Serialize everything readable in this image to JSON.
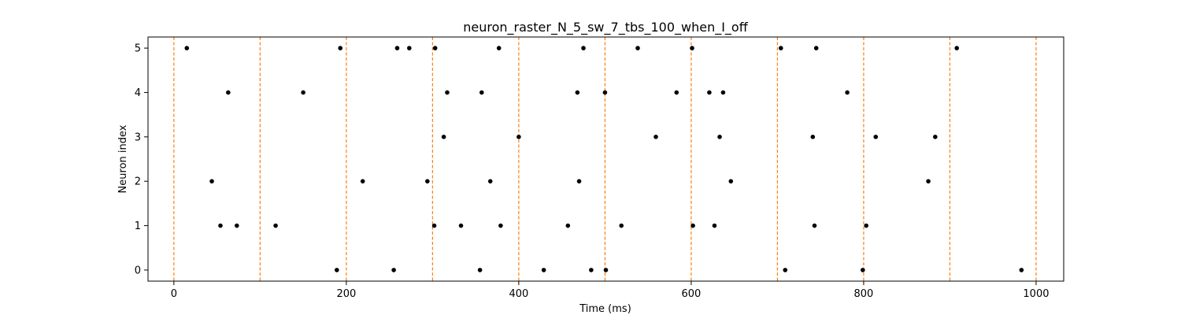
{
  "chart_data": {
    "type": "scatter",
    "title": "neuron_raster_N_5_sw_7_tbs_100_when_I_off",
    "xlabel": "Time (ms)",
    "ylabel": "Neuron index",
    "xlim": [
      -30,
      1032
    ],
    "ylim": [
      -0.25,
      5.25
    ],
    "xticks": [
      0,
      200,
      400,
      600,
      800,
      1000
    ],
    "yticks": [
      0,
      1,
      2,
      3,
      4,
      5
    ],
    "grid": false,
    "legend": "none",
    "marker_color": "#000000",
    "vline_color": "#ff7f0e",
    "vlines": [
      0,
      100,
      200,
      300,
      400,
      500,
      600,
      700,
      800,
      900,
      1000
    ],
    "series": [
      {
        "neuron": 5,
        "spikes": [
          15,
          193,
          259,
          273,
          303,
          377,
          475,
          538,
          601,
          704,
          745,
          908
        ]
      },
      {
        "neuron": 4,
        "spikes": [
          63,
          150,
          317,
          357,
          468,
          500,
          583,
          621,
          637,
          781
        ]
      },
      {
        "neuron": 3,
        "spikes": [
          313,
          400,
          559,
          633,
          741,
          814,
          883
        ]
      },
      {
        "neuron": 2,
        "spikes": [
          44,
          219,
          294,
          367,
          470,
          646,
          875
        ]
      },
      {
        "neuron": 1,
        "spikes": [
          54,
          73,
          118,
          302,
          333,
          379,
          457,
          519,
          602,
          627,
          743,
          803
        ]
      },
      {
        "neuron": 0,
        "spikes": [
          189,
          255,
          355,
          429,
          484,
          501,
          709,
          799,
          983
        ]
      }
    ]
  }
}
